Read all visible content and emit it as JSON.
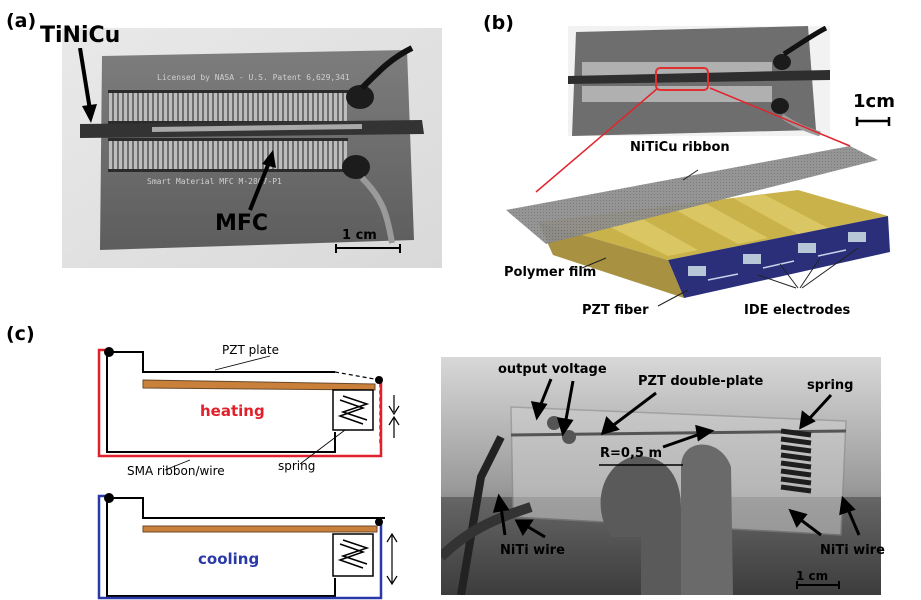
{
  "panel_a": {
    "letter": "(a)",
    "label_tinicu": "TiNiCu",
    "label_mfc": "MFC",
    "scale": "1 cm",
    "imprint_top": "Licensed by NASA - U.S. Patent 6,629,341",
    "imprint_bottom": "Smart Material MFC   M-2807-P1"
  },
  "panel_b": {
    "letter": "(b)",
    "scale": "1cm",
    "ribbon": "NiTiCu ribbon",
    "polymer": "Polymer film",
    "pzt": "PZT fiber",
    "ide": "IDE electrodes"
  },
  "panel_c": {
    "letter": "(c)",
    "pzt_plate": "PZT plate",
    "heating": "heating",
    "sma": "SMA ribbon/wire",
    "spring": "spring",
    "cooling": "cooling",
    "output_voltage": "output voltage",
    "pzt_double": "PZT double-plate",
    "spring_photo": "spring",
    "radius": "R=0,5 m",
    "niti_left": "NiTi wire",
    "niti_right": "NiTi wire",
    "scale": "1 cm"
  },
  "colors": {
    "heating": "#e0202a",
    "cooling": "#2a39a8",
    "pzt": "#c9803a"
  }
}
